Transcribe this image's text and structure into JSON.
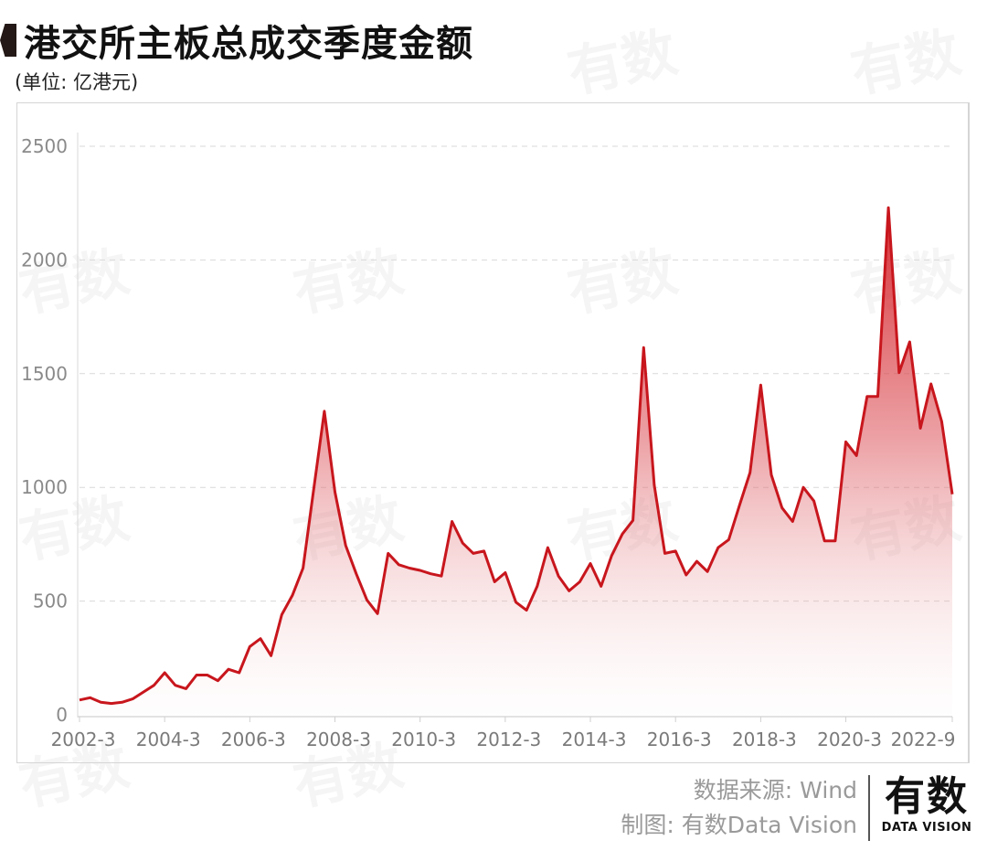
{
  "header": {
    "title": "港交所主板总成交季度金额",
    "unit": "(单位: 亿港元)"
  },
  "footer": {
    "source": "数据来源: Wind",
    "credit": "制图: 有数Data Vision"
  },
  "logo": {
    "cn": "有数",
    "en": "DATA VISION"
  },
  "watermark": "有数",
  "colors": {
    "line": "#c8161d",
    "fill_top": "#d42026",
    "grid": "#d9d9d9",
    "axis_text": "#8a8a8a"
  },
  "chart_data": {
    "type": "area",
    "title": "港交所主板总成交季度金额",
    "subtitle": "(单位: 亿港元)",
    "xlabel": "",
    "ylabel": "亿港元",
    "ylim": [
      0,
      2500
    ],
    "yticks": [
      0,
      500,
      1000,
      1500,
      2000,
      2500
    ],
    "xtick_labels": [
      "2002-3",
      "2004-3",
      "2006-3",
      "2008-3",
      "2010-3",
      "2012-3",
      "2014-3",
      "2016-3",
      "2018-3",
      "2020-3",
      "2022-9"
    ],
    "grid": "horizontal dashed",
    "legend": "none",
    "x": [
      "2002-3",
      "2002-6",
      "2002-9",
      "2002-12",
      "2003-3",
      "2003-6",
      "2003-9",
      "2003-12",
      "2004-3",
      "2004-6",
      "2004-9",
      "2004-12",
      "2005-3",
      "2005-6",
      "2005-9",
      "2005-12",
      "2006-3",
      "2006-6",
      "2006-9",
      "2006-12",
      "2007-3",
      "2007-6",
      "2007-9",
      "2007-12",
      "2008-3",
      "2008-6",
      "2008-9",
      "2008-12",
      "2009-3",
      "2009-6",
      "2009-9",
      "2009-12",
      "2010-3",
      "2010-6",
      "2010-9",
      "2010-12",
      "2011-3",
      "2011-6",
      "2011-9",
      "2011-12",
      "2012-3",
      "2012-6",
      "2012-9",
      "2012-12",
      "2013-3",
      "2013-6",
      "2013-9",
      "2013-12",
      "2014-3",
      "2014-6",
      "2014-9",
      "2014-12",
      "2015-3",
      "2015-6",
      "2015-9",
      "2015-12",
      "2016-3",
      "2016-6",
      "2016-9",
      "2016-12",
      "2017-3",
      "2017-6",
      "2017-9",
      "2017-12",
      "2018-3",
      "2018-6",
      "2018-9",
      "2018-12",
      "2019-3",
      "2019-6",
      "2019-9",
      "2019-12",
      "2020-3",
      "2020-6",
      "2020-9",
      "2020-12",
      "2021-3",
      "2021-6",
      "2021-9",
      "2021-12",
      "2022-3",
      "2022-6",
      "2022-9"
    ],
    "series": [
      {
        "name": "主板总成交季度金额",
        "values": [
          65,
          75,
          55,
          50,
          55,
          70,
          100,
          130,
          185,
          130,
          115,
          175,
          175,
          150,
          200,
          185,
          300,
          335,
          260,
          440,
          525,
          645,
          990,
          1335,
          980,
          745,
          620,
          505,
          445,
          710,
          660,
          645,
          635,
          620,
          610,
          850,
          755,
          710,
          720,
          585,
          625,
          495,
          460,
          565,
          735,
          610,
          545,
          585,
          665,
          565,
          700,
          795,
          855,
          1615,
          1010,
          710,
          720,
          615,
          675,
          630,
          735,
          770,
          920,
          1065,
          1450,
          1055,
          910,
          850,
          1000,
          940,
          765,
          765,
          1200,
          1140,
          1400,
          1400,
          2230,
          1505,
          1640,
          1260,
          1455,
          1290,
          970
        ]
      }
    ]
  }
}
